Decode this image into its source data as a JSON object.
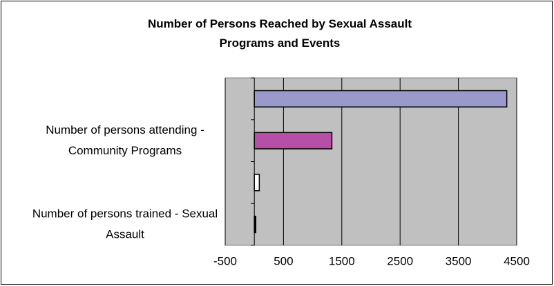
{
  "chart_data": {
    "type": "bar",
    "orientation": "horizontal",
    "title": "Number of Persons Reached by Sexual Assault Programs and Events",
    "categories": [
      null,
      "Number of persons attending - Community Programs",
      null,
      "Number of persons trained - Sexual Assault"
    ],
    "values": [
      4330,
      1330,
      85,
      25
    ],
    "colors": [
      "#9999cc",
      "#b84fa6",
      "#ffffff",
      "#000000"
    ],
    "xlim": [
      -500,
      4500
    ],
    "xticks": [
      -500,
      500,
      1500,
      2500,
      3500,
      4500
    ],
    "grid": true
  }
}
